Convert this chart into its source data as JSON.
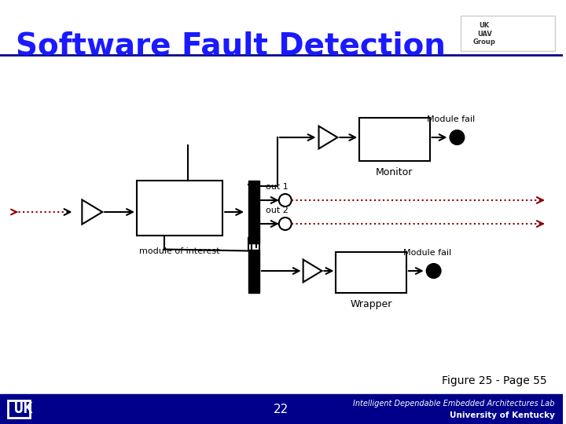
{
  "title": "Software Fault Detection",
  "title_color": "#1a1aff",
  "title_fontsize": 28,
  "bg_color": "#ffffff",
  "header_line_color": "#00008B",
  "footer_line_color": "#00008B",
  "footer_bg_color": "#00008B",
  "page_number": "22",
  "figure_label": "Figure 25 - Page 55",
  "footer_text1": "Intelligent Dependable Embedded Architectures Lab",
  "footer_text2": "University of Kentucky",
  "dotted_color": "#8B0000",
  "block_color": "#000000",
  "label_color": "#404040"
}
